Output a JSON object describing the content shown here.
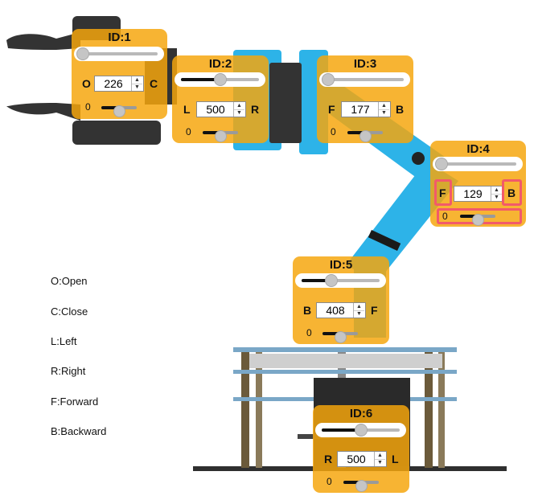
{
  "panels": {
    "p1": {
      "title": "ID:1",
      "left_label": "O",
      "right_label": "C",
      "value": "226",
      "slider_level": 0.03,
      "mini_level": 0.5,
      "mini_min": "0"
    },
    "p2": {
      "title": "ID:2",
      "left_label": "L",
      "right_label": "R",
      "value": "500",
      "slider_level": 0.5,
      "mini_level": 0.5,
      "mini_min": "0"
    },
    "p3": {
      "title": "ID:3",
      "left_label": "F",
      "right_label": "B",
      "value": "177",
      "slider_level": 0.03,
      "mini_level": 0.5,
      "mini_min": "0"
    },
    "p4": {
      "title": "ID:4",
      "left_label": "F",
      "right_label": "B",
      "value": "129",
      "slider_level": 0.03,
      "mini_level": 0.5,
      "mini_min": "0"
    },
    "p5": {
      "title": "ID:5",
      "left_label": "B",
      "right_label": "F",
      "value": "408",
      "slider_level": 0.38,
      "mini_level": 0.5,
      "mini_min": "0"
    },
    "p6": {
      "title": "ID:6",
      "left_label": "R",
      "right_label": "L",
      "value": "500",
      "slider_level": 0.5,
      "mini_level": 0.5,
      "mini_min": "0"
    }
  },
  "legend": [
    "O:Open",
    "C:Close",
    "L:Left",
    "R:Right",
    "F:Forward",
    "B:Backward"
  ],
  "highlight_color": "#f25a6a",
  "panel_color": "#f6a60c",
  "robot_blue": "#2db3e8"
}
